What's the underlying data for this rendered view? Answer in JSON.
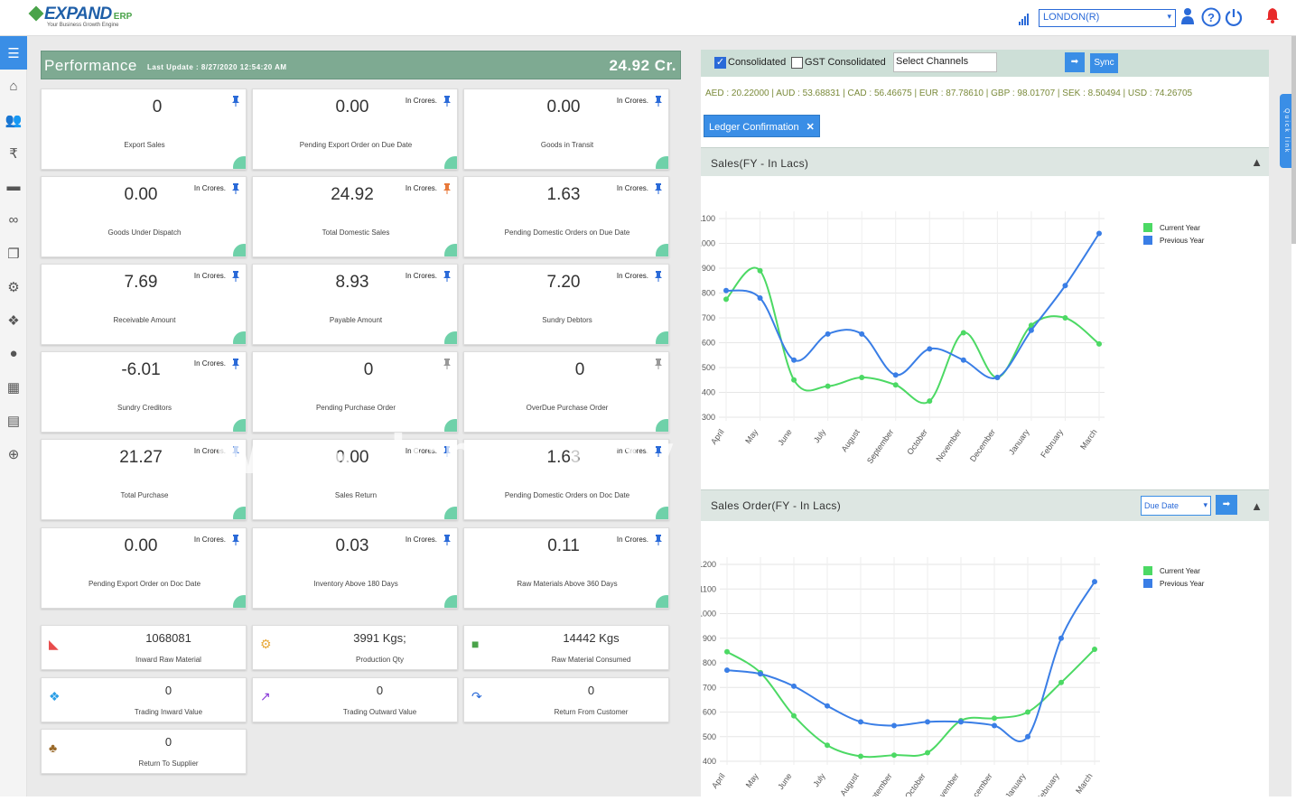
{
  "header": {
    "logo_main": "EXPAND",
    "logo_erp": "ERP",
    "logo_tag": "Your Business Growth Engine",
    "branch": "LONDON(R)"
  },
  "sidebar": {
    "items": [
      "menu-icon",
      "home-icon",
      "users-icon",
      "rupee-icon",
      "briefcase-icon",
      "handshake-icon",
      "documents-icon",
      "gears-icon",
      "cubes-icon",
      "user-icon",
      "calculator-icon",
      "file-icon",
      "plus-circle-icon"
    ]
  },
  "performance": {
    "title": "Performance",
    "last_update": "Last Update : 8/27/2020 12:54:20 AM",
    "total": "24.92 Cr."
  },
  "cards": [
    {
      "value": "0",
      "label": "Export Sales",
      "unit": "",
      "pin": "blue"
    },
    {
      "value": "0.00",
      "label": "Pending Export Order on Due Date",
      "unit": "In Crores.",
      "pin": "blue"
    },
    {
      "value": "0.00",
      "label": "Goods in Transit",
      "unit": "In Crores.",
      "pin": "blue"
    },
    {
      "value": "0.00",
      "label": "Goods Under Dispatch",
      "unit": "In Crores.",
      "pin": "blue"
    },
    {
      "value": "24.92",
      "label": "Total Domestic Sales",
      "unit": "In Crores.",
      "pin": "orange"
    },
    {
      "value": "1.63",
      "label": "Pending Domestic Orders on Due Date",
      "unit": "In Crores.",
      "pin": "blue"
    },
    {
      "value": "7.69",
      "label": "Receivable Amount",
      "unit": "In Crores.",
      "pin": "blue"
    },
    {
      "value": "8.93",
      "label": "Payable Amount",
      "unit": "In Crores.",
      "pin": "blue"
    },
    {
      "value": "7.20",
      "label": "Sundry Debtors",
      "unit": "In Crores.",
      "pin": "blue"
    },
    {
      "value": "-6.01",
      "label": "Sundry Creditors",
      "unit": "In Crores.",
      "pin": "blue"
    },
    {
      "value": "0",
      "label": "Pending Purchase Order",
      "unit": "",
      "pin": "grey"
    },
    {
      "value": "0",
      "label": "OverDue Purchase Order",
      "unit": "",
      "pin": "grey"
    },
    {
      "value": "21.27",
      "label": "Total Purchase",
      "unit": "In Crores.",
      "pin": "blue"
    },
    {
      "value": "0.00",
      "label": "Sales Return",
      "unit": "In Crores.",
      "pin": "blue"
    },
    {
      "value": "1.63",
      "label": "Pending Domestic Orders on Doc Date",
      "unit": "In Crores.",
      "pin": "blue"
    },
    {
      "value": "0.00",
      "label": "Pending Export Order on Doc Date",
      "unit": "In Crores.",
      "pin": "blue"
    },
    {
      "value": "0.03",
      "label": "Inventory Above 180 Days",
      "unit": "In Crores.",
      "pin": "blue"
    },
    {
      "value": "0.11",
      "label": "Raw Materials Above 360 Days",
      "unit": "In Crores.",
      "pin": "blue"
    }
  ],
  "minis": [
    {
      "value": "1068081",
      "label": "Inward Raw Material",
      "icon": "area-chart-icon",
      "color": "#e84c4c"
    },
    {
      "value": "3991 Kgs;",
      "label": "Production Qty",
      "icon": "gears-icon",
      "color": "#e8a93a"
    },
    {
      "value": "14442 Kgs",
      "label": "Raw Material Consumed",
      "icon": "truck-icon",
      "color": "#4aa34a"
    },
    {
      "value": "0",
      "label": "Trading Inward Value",
      "icon": "cubes-icon",
      "color": "#2a9ee6"
    },
    {
      "value": "0",
      "label": "Trading Outward Value",
      "icon": "line-chart-icon",
      "color": "#8a3ad8"
    },
    {
      "value": "0",
      "label": "Return From Customer",
      "icon": "return-icon",
      "color": "#2a6ad8"
    },
    {
      "value": "0",
      "label": "Return To Supplier",
      "icon": "group-icon",
      "color": "#9a6a2a"
    }
  ],
  "filters": {
    "consolidated": "Consolidated",
    "gst_consolidated": "GST Consolidated",
    "channels_placeholder": "Select Channels",
    "sync": "Sync",
    "rates": "AED : 20.22000 | AUD : 53.68831 | CAD : 56.46675 | EUR : 87.78610 | GBP : 98.01707 | SEK : 8.50494 | USD : 74.26705",
    "ledger_tag": "Ledger Confirmation"
  },
  "quick_link": "Quick link",
  "watermark": "www.dsnan.ogy",
  "colors": {
    "current": "#4cd964",
    "previous": "#3a7ee6",
    "accent": "#3a8ee6",
    "perf": "#7eaa92"
  },
  "chart_data": [
    {
      "type": "line",
      "title": "Sales(FY - In Lacs)",
      "categories": [
        "April",
        "May",
        "June",
        "July",
        "August",
        "September",
        "October",
        "November",
        "December",
        "January",
        "February",
        "March"
      ],
      "ylim": [
        300,
        1100
      ],
      "yticks": [
        300,
        400,
        500,
        600,
        700,
        800,
        900,
        1000,
        1100
      ],
      "grid": true,
      "legend": "top-right",
      "series": [
        {
          "name": "Current Year",
          "values": [
            775,
            890,
            450,
            425,
            460,
            430,
            365,
            640,
            460,
            670,
            700,
            595
          ]
        },
        {
          "name": "Previous Year",
          "values": [
            810,
            780,
            530,
            635,
            635,
            470,
            575,
            530,
            460,
            650,
            830,
            1040
          ]
        }
      ]
    },
    {
      "type": "line",
      "title": "Sales Order(FY - In Lacs)",
      "select": "Due Date",
      "categories": [
        "April",
        "May",
        "June",
        "July",
        "August",
        "September",
        "October",
        "November",
        "December",
        "January",
        "February",
        "March"
      ],
      "ylim": [
        400,
        1200
      ],
      "yticks": [
        400,
        500,
        600,
        700,
        800,
        900,
        1000,
        1100,
        1200
      ],
      "grid": true,
      "legend": "top-right",
      "series": [
        {
          "name": "Current Year",
          "values": [
            845,
            760,
            585,
            465,
            420,
            425,
            435,
            565,
            575,
            600,
            720,
            855
          ]
        },
        {
          "name": "Previous Year",
          "values": [
            770,
            755,
            705,
            625,
            560,
            545,
            560,
            560,
            545,
            500,
            900,
            1130
          ]
        }
      ]
    }
  ]
}
